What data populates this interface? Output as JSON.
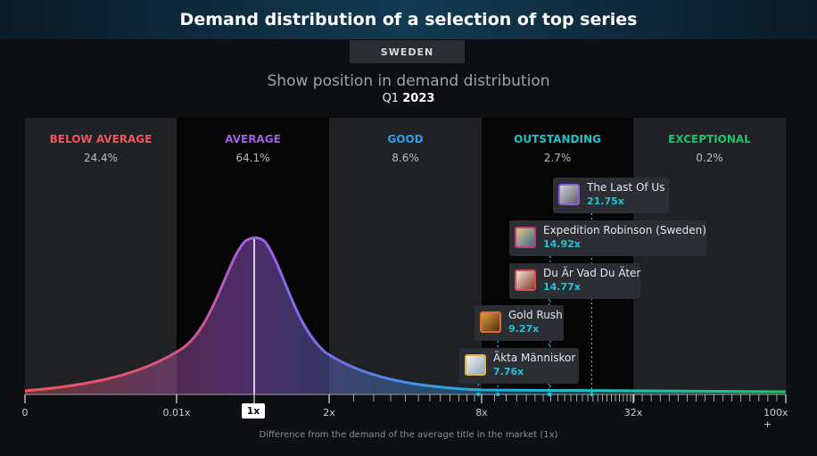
{
  "header": {
    "title": "Demand distribution of a selection of top series"
  },
  "region": "SWEDEN",
  "subtitle": "Show position in demand distribution",
  "period": {
    "quarter": "Q1",
    "year": "2023"
  },
  "colors": {
    "below": "#f0545e",
    "average": "#a35ee6",
    "good": "#2f9fe8",
    "outstanding": "#1ec3c6",
    "exceptional": "#1ec36a",
    "value": "#23c3d6"
  },
  "chart_data": {
    "type": "area",
    "xlabel": "Difference from the demand of the average title in the market (1x)",
    "x_ticks": [
      "0",
      "0.01x",
      "1x",
      "2x",
      "8x",
      "32x",
      "100x +"
    ],
    "bands": [
      {
        "name": "BELOW AVERAGE",
        "share": "24.4%"
      },
      {
        "name": "AVERAGE",
        "share": "64.1%"
      },
      {
        "name": "GOOD",
        "share": "8.6%"
      },
      {
        "name": "OUTSTANDING",
        "share": "2.7%"
      },
      {
        "name": "EXCEPTIONAL",
        "share": "0.2%"
      }
    ],
    "titles": [
      {
        "name": "The Last Of Us",
        "value": 21.75,
        "label": "21.75x"
      },
      {
        "name": "Expedition Robinson (Sweden)",
        "value": 14.92,
        "label": "14.92x"
      },
      {
        "name": "Du Är Vad Du Äter",
        "value": 14.77,
        "label": "14.77x"
      },
      {
        "name": "Gold Rush",
        "value": 9.27,
        "label": "9.27x"
      },
      {
        "name": "Äkta Människor",
        "value": 7.76,
        "label": "7.76x"
      }
    ]
  }
}
